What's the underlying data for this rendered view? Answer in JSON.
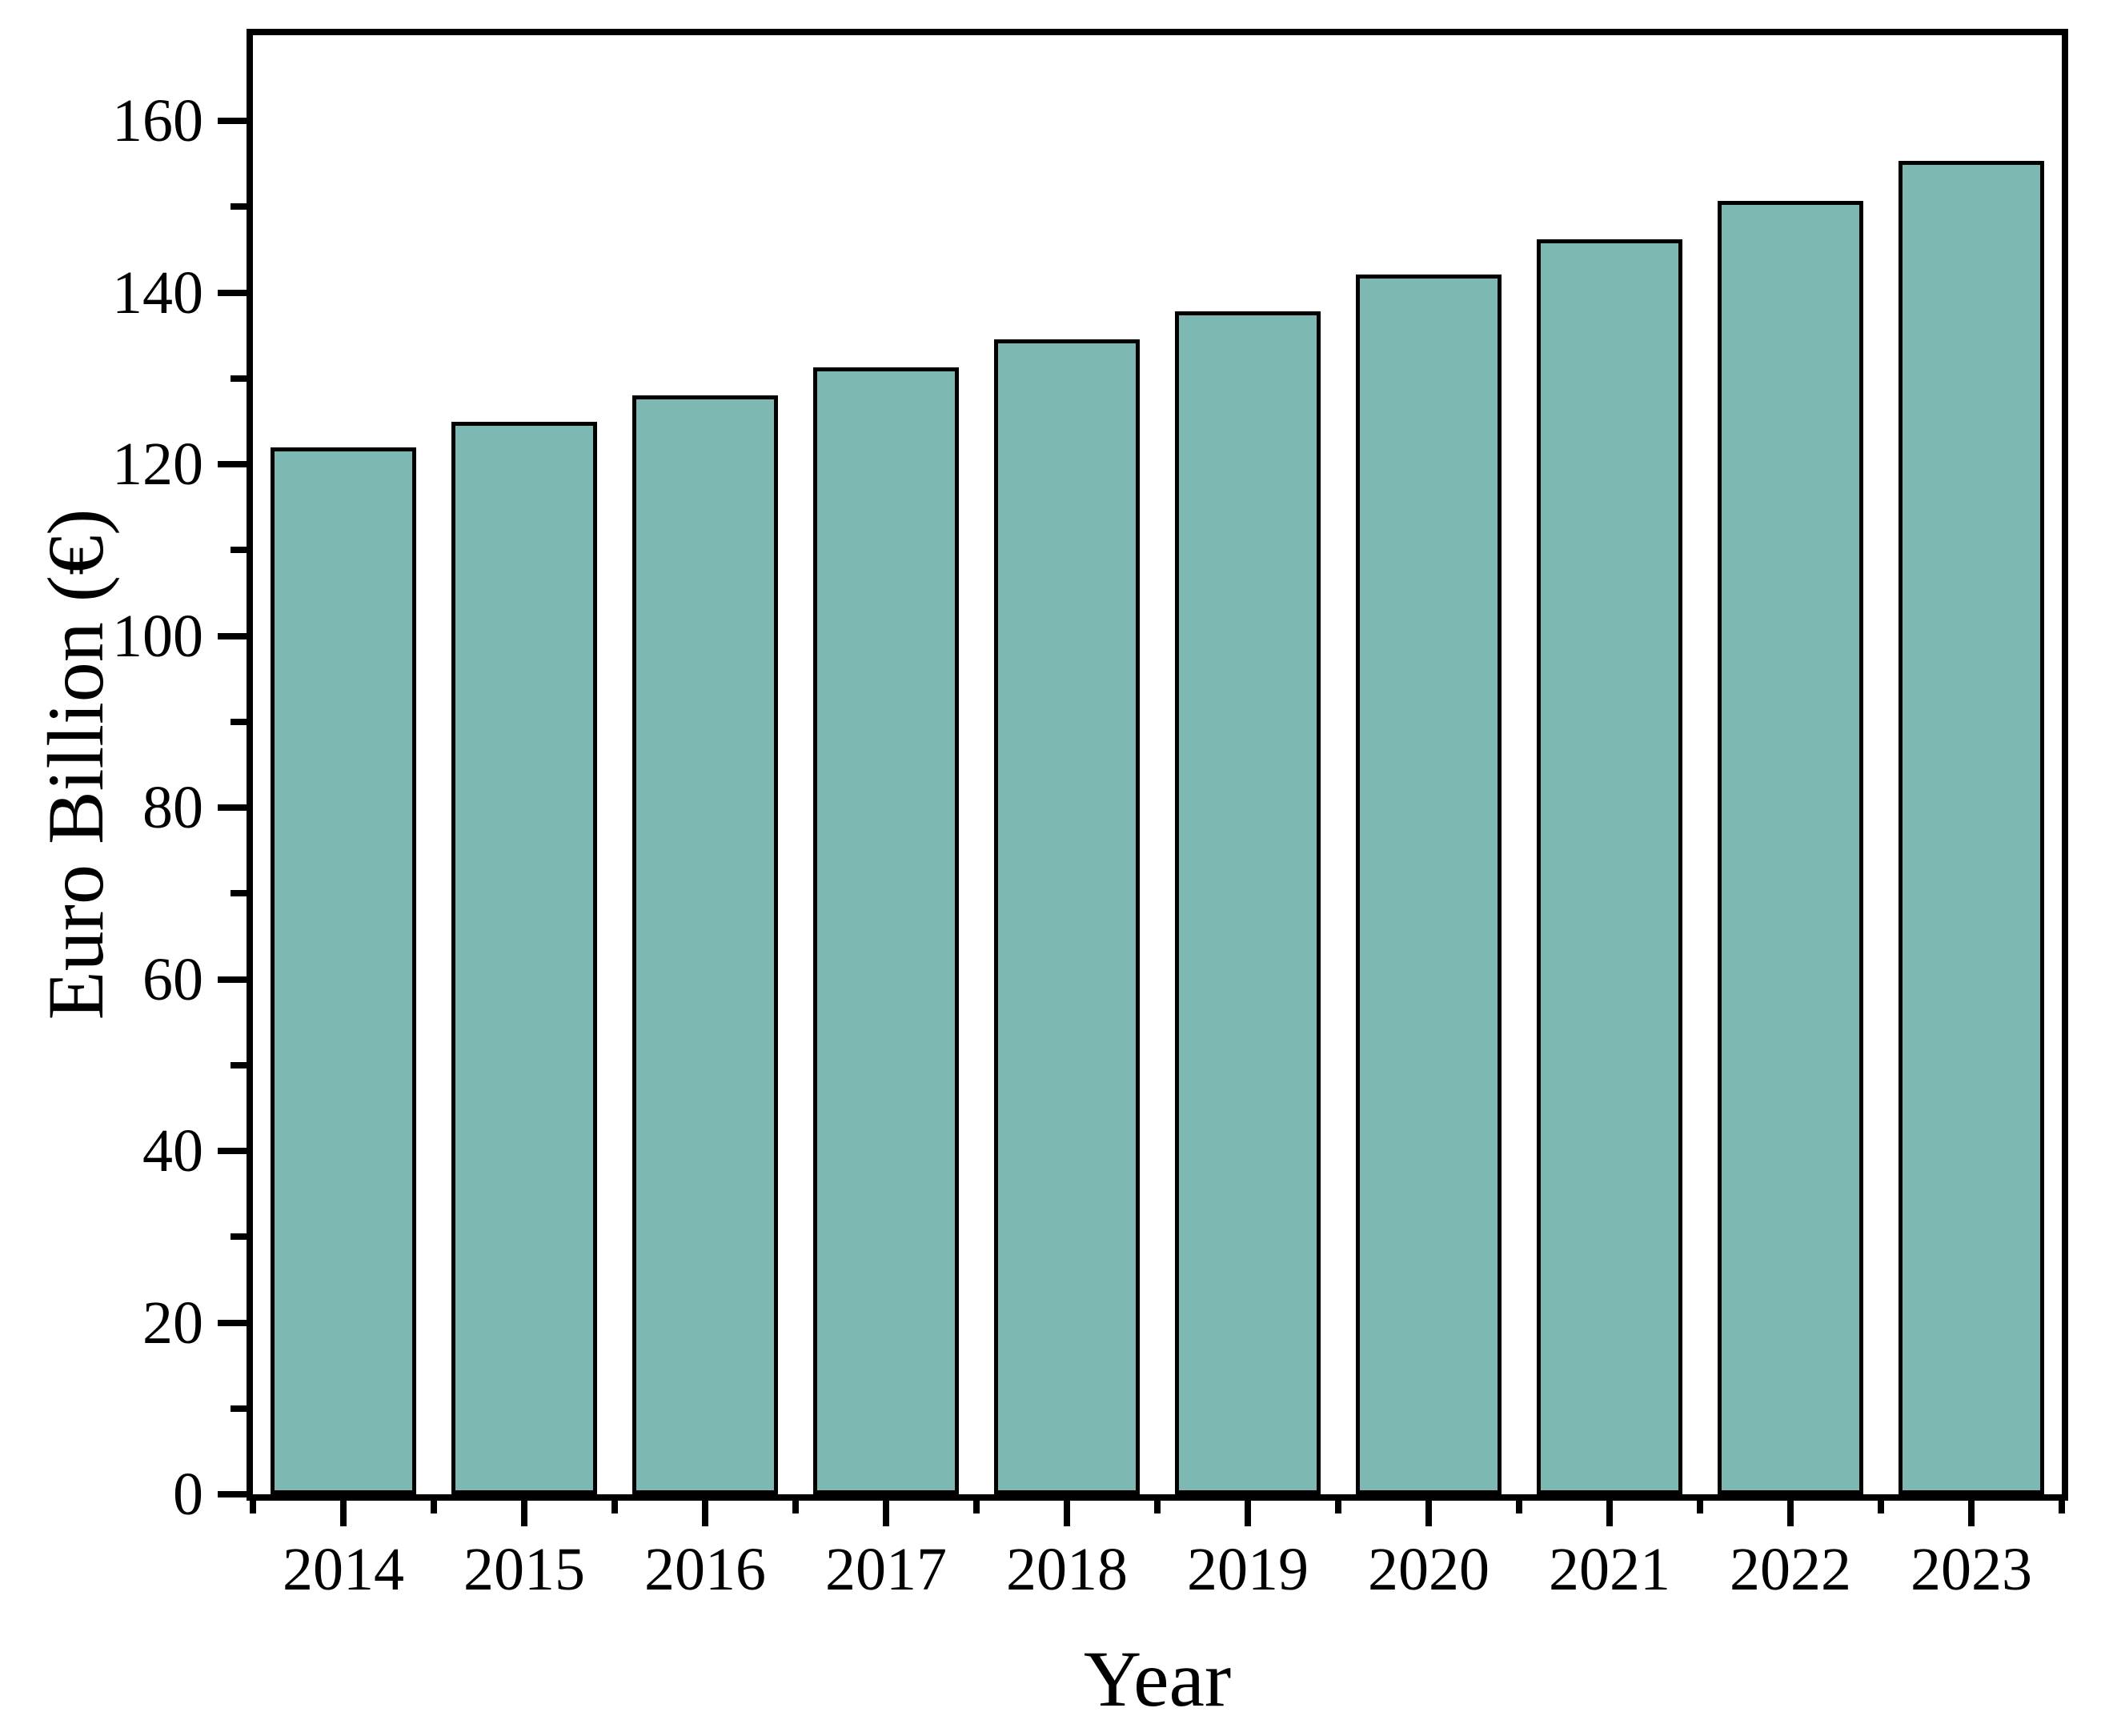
{
  "chart_data": {
    "type": "bar",
    "title": "",
    "xlabel": "Year",
    "ylabel": "Euro Billion (€)",
    "categories": [
      "2014",
      "2015",
      "2016",
      "2017",
      "2018",
      "2019",
      "2020",
      "2021",
      "2022",
      "2023"
    ],
    "values": [
      122.0,
      125.0,
      128.0,
      131.3,
      134.6,
      137.8,
      142.1,
      146.2,
      150.7,
      155.4
    ],
    "ylim": [
      0,
      170
    ],
    "y_major_step": 20,
    "y_minor_step": 10,
    "y_tick_labels": [
      "0",
      "20",
      "40",
      "60",
      "80",
      "100",
      "120",
      "140",
      "160"
    ],
    "grid": false,
    "legend": null,
    "bar_color": "#7DB8B2",
    "bar_border_color": "#000000",
    "axis_color": "#000000",
    "background_color": "#ffffff"
  }
}
